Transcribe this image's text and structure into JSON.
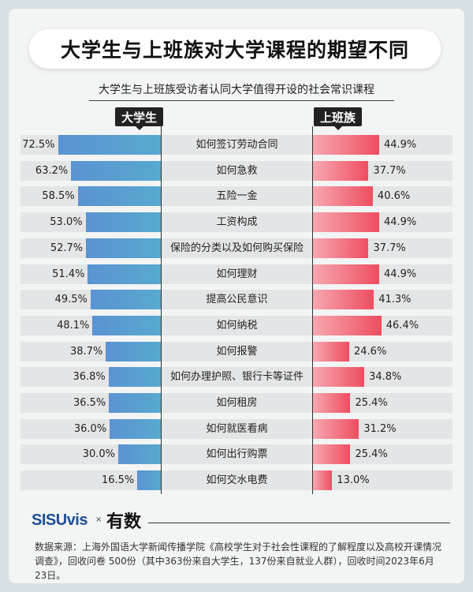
{
  "title": "大学生与上班族对大学课程的期望不同",
  "chart_data": {
    "type": "bar",
    "title": "大学生与上班族对大学课程的期望不同",
    "subtitle": "大学生与上班族受访者认同大学值得开设的社会常识课程",
    "categories": [
      "如何签订劳动合同",
      "如何急救",
      "五险一金",
      "工资构成",
      "保险的分类以及如何购买保险",
      "如何理财",
      "提高公民意识",
      "如何纳税",
      "如何报警",
      "如何办理护照、银行卡等证件",
      "如何租房",
      "如何就医看病",
      "如何出行购票",
      "如何交水电费"
    ],
    "series": [
      {
        "name": "大学生",
        "values": [
          72.5,
          63.2,
          58.5,
          53.0,
          52.7,
          51.4,
          49.5,
          48.1,
          38.7,
          36.8,
          36.5,
          36.0,
          30.0,
          16.5
        ],
        "labels": [
          "72.5%",
          "63.2%",
          "58.5%",
          "53.0%",
          "52.7%",
          "51.4%",
          "49.5%",
          "48.1%",
          "38.7%",
          "36.8%",
          "36.5%",
          "36.0%",
          "30.0%",
          "16.5%"
        ]
      },
      {
        "name": "上班族",
        "values": [
          44.9,
          37.7,
          40.6,
          44.9,
          37.7,
          44.9,
          41.3,
          46.4,
          24.6,
          34.8,
          25.4,
          31.2,
          25.4,
          13.0
        ],
        "labels": [
          "44.9%",
          "37.7%",
          "40.6%",
          "44.9%",
          "37.7%",
          "44.9%",
          "41.3%",
          "46.4%",
          "24.6%",
          "34.8%",
          "25.4%",
          "31.2%",
          "25.4%",
          "13.0%"
        ]
      }
    ],
    "colors": {
      "left": "#5b93d2",
      "right": "#ee4e60"
    }
  },
  "footer": {
    "logo": "SISUvis",
    "x": "×",
    "logo2": "有数",
    "source": "数据来源：上海外国语大学新闻传播学院《高校学生对于社会性课程的了解程度以及高校开课情况调查》，回收问卷 500份（其中363份来自大学生，137份来自就业人群），回收时间2023年6月23日。"
  }
}
